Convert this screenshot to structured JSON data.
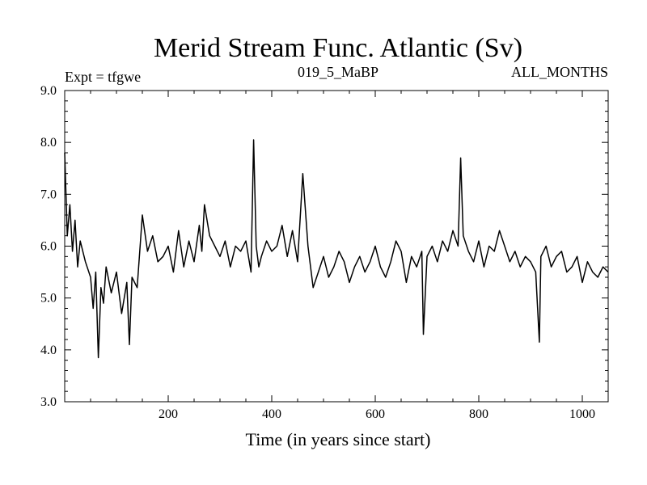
{
  "chart_data": {
    "type": "line",
    "title": "Merid Stream Func. Atlantic (Sv)",
    "header_left": "Expt = tfgwe",
    "header_center": "019_5_MaBP",
    "header_right": "ALL_MONTHS",
    "xlabel": "Time (in years since start)",
    "ylabel": "",
    "xlim": [
      0,
      1050
    ],
    "ylim": [
      3.0,
      9.0
    ],
    "x_ticks": [
      200,
      400,
      600,
      800,
      1000
    ],
    "x_tick_labels": [
      "200",
      "400",
      "600",
      "800",
      "1000"
    ],
    "y_ticks": [
      3.0,
      4.0,
      5.0,
      6.0,
      7.0,
      8.0,
      9.0
    ],
    "y_tick_labels": [
      "3.0",
      "4.0",
      "5.0",
      "6.0",
      "7.0",
      "8.0",
      "9.0"
    ],
    "grid": false,
    "line_color": "#000000",
    "series": [
      {
        "name": "Merid Stream Func. Atlantic",
        "x": [
          0,
          5,
          10,
          15,
          20,
          25,
          30,
          40,
          50,
          55,
          60,
          65,
          70,
          75,
          80,
          90,
          100,
          110,
          120,
          125,
          130,
          140,
          150,
          160,
          170,
          180,
          190,
          200,
          210,
          220,
          230,
          240,
          250,
          260,
          265,
          270,
          280,
          290,
          300,
          310,
          320,
          330,
          340,
          350,
          360,
          365,
          370,
          375,
          380,
          390,
          400,
          410,
          420,
          430,
          440,
          450,
          460,
          470,
          480,
          490,
          500,
          510,
          520,
          530,
          540,
          550,
          560,
          570,
          580,
          590,
          600,
          610,
          620,
          630,
          640,
          650,
          660,
          670,
          680,
          690,
          693,
          700,
          710,
          720,
          730,
          740,
          750,
          760,
          765,
          770,
          780,
          790,
          800,
          810,
          820,
          830,
          840,
          850,
          860,
          870,
          880,
          890,
          900,
          910,
          917,
          920,
          930,
          940,
          950,
          960,
          970,
          980,
          990,
          1000,
          1010,
          1020,
          1030,
          1040,
          1050
        ],
        "y": [
          7.8,
          6.2,
          6.8,
          5.9,
          6.5,
          5.6,
          6.1,
          5.7,
          5.4,
          4.8,
          5.5,
          3.85,
          5.2,
          4.9,
          5.6,
          5.1,
          5.5,
          4.7,
          5.3,
          4.1,
          5.4,
          5.2,
          6.6,
          5.9,
          6.2,
          5.7,
          5.8,
          6.0,
          5.5,
          6.3,
          5.6,
          6.1,
          5.7,
          6.4,
          5.9,
          6.8,
          6.2,
          6.0,
          5.8,
          6.1,
          5.6,
          6.0,
          5.9,
          6.1,
          5.5,
          8.05,
          6.0,
          5.6,
          5.8,
          6.1,
          5.9,
          6.0,
          6.4,
          5.8,
          6.3,
          5.7,
          7.4,
          6.0,
          5.2,
          5.5,
          5.8,
          5.4,
          5.6,
          5.9,
          5.7,
          5.3,
          5.6,
          5.8,
          5.5,
          5.7,
          6.0,
          5.6,
          5.4,
          5.7,
          6.1,
          5.9,
          5.3,
          5.8,
          5.6,
          5.9,
          4.3,
          5.8,
          6.0,
          5.7,
          6.1,
          5.9,
          6.3,
          6.0,
          7.7,
          6.2,
          5.9,
          5.7,
          6.1,
          5.6,
          6.0,
          5.9,
          6.3,
          6.0,
          5.7,
          5.9,
          5.6,
          5.8,
          5.7,
          5.5,
          4.15,
          5.8,
          6.0,
          5.6,
          5.8,
          5.9,
          5.5,
          5.6,
          5.8,
          5.3,
          5.7,
          5.5,
          5.4,
          5.6,
          5.5
        ]
      }
    ]
  }
}
